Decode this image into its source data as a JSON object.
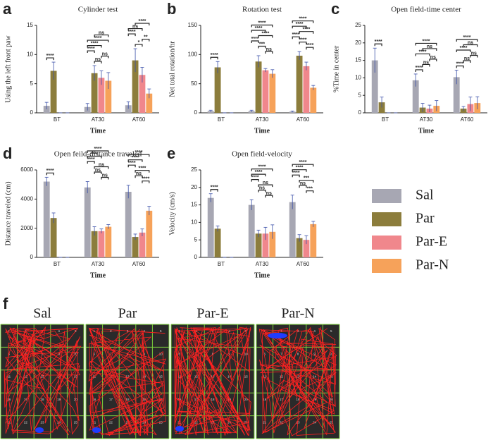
{
  "chart_data": [
    {
      "type": "bar",
      "label": "a",
      "title": "Cylinder test",
      "y_label": "Using the left front paw",
      "x_label": "Time",
      "categories": [
        "BT",
        "AT30",
        "AT60"
      ],
      "ylim": [
        0,
        15
      ],
      "yticks": [
        0,
        5,
        10,
        15
      ],
      "series": [
        {
          "name": "Sal",
          "color": "#a7a7b3",
          "values": [
            1.2,
            1.0,
            1.3
          ],
          "errors": [
            0.6,
            0.6,
            0.6
          ]
        },
        {
          "name": "Par",
          "color": "#8c7d3c",
          "values": [
            7.2,
            6.8,
            9.0
          ],
          "errors": [
            1.5,
            1.3,
            2.0
          ]
        },
        {
          "name": "Par-E",
          "color": "#f0878c",
          "values": [
            0,
            6.0,
            6.5
          ],
          "errors": [
            0,
            1.2,
            1.3
          ]
        },
        {
          "name": "Par-N",
          "color": "#f6a25a",
          "values": [
            0,
            5.5,
            3.3
          ],
          "errors": [
            0,
            1.4,
            0.8
          ]
        }
      ],
      "annotations": [
        {
          "category": "BT",
          "between": [
            "Sal",
            "Par"
          ],
          "label": "****"
        },
        {
          "category": "AT30",
          "between": [
            "Par",
            "Par-E"
          ],
          "label": "ns"
        },
        {
          "category": "AT30",
          "between": [
            "Par-E",
            "Par-N"
          ],
          "label": "ns"
        },
        {
          "category": "AT30",
          "between": [
            "Sal",
            "Par"
          ],
          "label": "****"
        },
        {
          "category": "AT30",
          "between": [
            "Sal",
            "Par-E"
          ],
          "label": "****"
        },
        {
          "category": "AT30",
          "between": [
            "Sal",
            "Par-N"
          ],
          "label": "****"
        },
        {
          "category": "AT30",
          "between": [
            "Par",
            "Par-N"
          ],
          "label": "ns"
        },
        {
          "category": "AT60",
          "between": [
            "Par",
            "Par-E"
          ],
          "label": "*"
        },
        {
          "category": "AT60",
          "between": [
            "Par-E",
            "Par-N"
          ],
          "label": "**"
        },
        {
          "category": "AT60",
          "between": [
            "Sal",
            "Par"
          ],
          "label": "****"
        },
        {
          "category": "AT60",
          "between": [
            "Sal",
            "Par-E"
          ],
          "label": "ns"
        },
        {
          "category": "AT60",
          "between": [
            "Par",
            "Par-N"
          ],
          "label": "****"
        }
      ]
    },
    {
      "type": "bar",
      "label": "b",
      "title": "Rotation test",
      "y_label": "Net total rotation/hr",
      "x_label": "Time",
      "categories": [
        "BT",
        "AT30",
        "AT60"
      ],
      "ylim": [
        0,
        150
      ],
      "yticks": [
        0,
        50,
        100,
        150
      ],
      "series": [
        {
          "name": "Sal",
          "color": "#a7a7b3",
          "values": [
            3,
            3,
            2
          ],
          "errors": [
            1.5,
            1.5,
            1
          ]
        },
        {
          "name": "Par",
          "color": "#8c7d3c",
          "values": [
            78,
            88,
            98
          ],
          "errors": [
            10,
            10,
            7
          ]
        },
        {
          "name": "Par-E",
          "color": "#f0878c",
          "values": [
            0,
            73,
            80
          ],
          "errors": [
            0,
            3,
            7
          ]
        },
        {
          "name": "Par-N",
          "color": "#f6a25a",
          "values": [
            0,
            67,
            43
          ],
          "errors": [
            0,
            7,
            4
          ]
        }
      ],
      "annotations": [
        {
          "category": "BT",
          "between": [
            "Sal",
            "Par"
          ],
          "label": "****"
        },
        {
          "category": "AT30",
          "between": [
            "Par-E",
            "Par-N"
          ],
          "label": "ns"
        },
        {
          "category": "AT30",
          "between": [
            "Par",
            "Par-E"
          ],
          "label": "***"
        },
        {
          "category": "AT30",
          "between": [
            "Sal",
            "Par"
          ],
          "label": "****"
        },
        {
          "category": "AT30",
          "between": [
            "Par",
            "Par-N"
          ],
          "label": "****"
        },
        {
          "category": "AT30",
          "between": [
            "Sal",
            "Par-E"
          ],
          "label": "****"
        },
        {
          "category": "AT30",
          "between": [
            "Sal",
            "Par-N"
          ],
          "label": "****"
        },
        {
          "category": "AT60",
          "between": [
            "Par-E",
            "Par-N"
          ],
          "label": "****"
        },
        {
          "category": "AT60",
          "between": [
            "Par",
            "Par-E"
          ],
          "label": "****"
        },
        {
          "category": "AT60",
          "between": [
            "Sal",
            "Par"
          ],
          "label": "****"
        },
        {
          "category": "AT60",
          "between": [
            "Par",
            "Par-N"
          ],
          "label": "****"
        },
        {
          "category": "AT60",
          "between": [
            "Sal",
            "Par-E"
          ],
          "label": "****"
        },
        {
          "category": "AT60",
          "between": [
            "Sal",
            "Par-N"
          ],
          "label": "****"
        }
      ]
    },
    {
      "type": "bar",
      "label": "c",
      "title": "Open field-time center",
      "y_label": "%Time in center",
      "x_label": "Time",
      "categories": [
        "BT",
        "AT30",
        "AT60"
      ],
      "ylim": [
        0,
        25
      ],
      "yticks": [
        0,
        5,
        10,
        15,
        20,
        25
      ],
      "series": [
        {
          "name": "Sal",
          "color": "#a7a7b3",
          "values": [
            15,
            9.3,
            10.2
          ],
          "errors": [
            3.5,
            1.8,
            2.0
          ]
        },
        {
          "name": "Par",
          "color": "#8c7d3c",
          "values": [
            3,
            1.5,
            1.2
          ],
          "errors": [
            1.5,
            1.2,
            0.6
          ]
        },
        {
          "name": "Par-E",
          "color": "#f0878c",
          "values": [
            0,
            1.2,
            2.5
          ],
          "errors": [
            0,
            1.0,
            2.0
          ]
        },
        {
          "name": "Par-N",
          "color": "#f6a25a",
          "values": [
            0,
            2,
            2.8
          ],
          "errors": [
            0,
            1.5,
            1.8
          ]
        }
      ],
      "annotations": [
        {
          "category": "BT",
          "between": [
            "Sal",
            "Par"
          ],
          "label": "****"
        },
        {
          "category": "AT30",
          "between": [
            "Sal",
            "Par"
          ],
          "label": "****"
        },
        {
          "category": "AT30",
          "between": [
            "Par",
            "Par-E"
          ],
          "label": "ns"
        },
        {
          "category": "AT30",
          "between": [
            "Par-E",
            "Par-N"
          ],
          "label": "ns"
        },
        {
          "category": "AT30",
          "between": [
            "Sal",
            "Par-E"
          ],
          "label": "****"
        },
        {
          "category": "AT30",
          "between": [
            "Par",
            "Par-N"
          ],
          "label": "ns"
        },
        {
          "category": "AT30",
          "between": [
            "Sal",
            "Par-N"
          ],
          "label": "****"
        },
        {
          "category": "AT60",
          "between": [
            "Sal",
            "Par"
          ],
          "label": "****"
        },
        {
          "category": "AT60",
          "between": [
            "Par",
            "Par-E"
          ],
          "label": "ns"
        },
        {
          "category": "AT60",
          "between": [
            "Par-E",
            "Par-N"
          ],
          "label": "ns"
        },
        {
          "category": "AT60",
          "between": [
            "Sal",
            "Par-E"
          ],
          "label": "****"
        },
        {
          "category": "AT60",
          "between": [
            "Par",
            "Par-N"
          ],
          "label": "ns"
        },
        {
          "category": "AT60",
          "between": [
            "Sal",
            "Par-N"
          ],
          "label": "****"
        }
      ]
    },
    {
      "type": "bar",
      "label": "d",
      "title": "Open feild-distance traveled",
      "y_label": "Distance traveled (cm)",
      "x_label": "Time",
      "categories": [
        "BT",
        "AT30",
        "AT60"
      ],
      "ylim": [
        0,
        6000
      ],
      "yticks": [
        0,
        2000,
        4000,
        6000
      ],
      "series": [
        {
          "name": "Sal",
          "color": "#a7a7b3",
          "values": [
            5200,
            4800,
            4500
          ],
          "errors": [
            300,
            400,
            450
          ]
        },
        {
          "name": "Par",
          "color": "#8c7d3c",
          "values": [
            2700,
            1800,
            1400
          ],
          "errors": [
            350,
            300,
            200
          ]
        },
        {
          "name": "Par-E",
          "color": "#f0878c",
          "values": [
            0,
            1800,
            1700
          ],
          "errors": [
            0,
            150,
            250
          ]
        },
        {
          "name": "Par-N",
          "color": "#f6a25a",
          "values": [
            0,
            2100,
            3200
          ],
          "errors": [
            0,
            150,
            300
          ]
        }
      ],
      "annotations": [
        {
          "category": "BT",
          "between": [
            "Sal",
            "Par"
          ],
          "label": "****"
        },
        {
          "category": "AT30",
          "between": [
            "Par-E",
            "Par-N"
          ],
          "label": "ns"
        },
        {
          "category": "AT30",
          "between": [
            "Par",
            "Par-E"
          ],
          "label": "ns"
        },
        {
          "category": "AT30",
          "between": [
            "Par",
            "Par-N"
          ],
          "label": "ns"
        },
        {
          "category": "AT30",
          "between": [
            "Sal",
            "Par"
          ],
          "label": "****"
        },
        {
          "category": "AT30",
          "between": [
            "Sal",
            "Par-E"
          ],
          "label": "****"
        },
        {
          "category": "AT30",
          "between": [
            "Sal",
            "Par-N"
          ],
          "label": "****"
        },
        {
          "category": "AT60",
          "between": [
            "Par-E",
            "Par-N"
          ],
          "label": "****"
        },
        {
          "category": "AT60",
          "between": [
            "Par",
            "Par-E"
          ],
          "label": "ns"
        },
        {
          "category": "AT60",
          "between": [
            "Par",
            "Par-N"
          ],
          "label": "****"
        },
        {
          "category": "AT60",
          "between": [
            "Sal",
            "Par"
          ],
          "label": "****"
        },
        {
          "category": "AT60",
          "between": [
            "Sal",
            "Par-E"
          ],
          "label": "****"
        },
        {
          "category": "AT60",
          "between": [
            "Sal",
            "Par-N"
          ],
          "label": "****"
        }
      ]
    },
    {
      "type": "bar",
      "label": "e",
      "title": "Open field-velocity",
      "y_label": "Velocity (cm/s)",
      "x_label": "Time",
      "categories": [
        "BT",
        "AT30",
        "AT60"
      ],
      "ylim": [
        0,
        25
      ],
      "yticks": [
        0,
        5,
        10,
        15,
        20,
        25
      ],
      "series": [
        {
          "name": "Sal",
          "color": "#a7a7b3",
          "values": [
            17,
            15,
            15.8
          ],
          "errors": [
            1.2,
            1.5,
            2.0
          ]
        },
        {
          "name": "Par",
          "color": "#8c7d3c",
          "values": [
            8.2,
            6.8,
            5.5
          ],
          "errors": [
            0.8,
            1.0,
            1.0
          ]
        },
        {
          "name": "Par-E",
          "color": "#f0878c",
          "values": [
            0,
            6.8,
            5
          ],
          "errors": [
            0,
            1.8,
            1.2
          ]
        },
        {
          "name": "Par-N",
          "color": "#f6a25a",
          "values": [
            0,
            7.3,
            9.5
          ],
          "errors": [
            0,
            2.0,
            0.8
          ]
        }
      ],
      "annotations": [
        {
          "category": "BT",
          "between": [
            "Sal",
            "Par"
          ],
          "label": "****"
        },
        {
          "category": "AT30",
          "between": [
            "Par-E",
            "Par-N"
          ],
          "label": "ns"
        },
        {
          "category": "AT30",
          "between": [
            "Par",
            "Par-E"
          ],
          "label": "ns"
        },
        {
          "category": "AT30",
          "between": [
            "Par",
            "Par-N"
          ],
          "label": "ns"
        },
        {
          "category": "AT30",
          "between": [
            "Sal",
            "Par"
          ],
          "label": "****"
        },
        {
          "category": "AT30",
          "between": [
            "Sal",
            "Par-E"
          ],
          "label": "****"
        },
        {
          "category": "AT30",
          "between": [
            "Sal",
            "Par-N"
          ],
          "label": "****"
        },
        {
          "category": "AT60",
          "between": [
            "Par-E",
            "Par-N"
          ],
          "label": "***"
        },
        {
          "category": "AT60",
          "between": [
            "Par",
            "Par-E"
          ],
          "label": "ns"
        },
        {
          "category": "AT60",
          "between": [
            "Par",
            "Par-N"
          ],
          "label": "***"
        },
        {
          "category": "AT60",
          "between": [
            "Sal",
            "Par"
          ],
          "label": "****"
        },
        {
          "category": "AT60",
          "between": [
            "Sal",
            "Par-E"
          ],
          "label": "****"
        },
        {
          "category": "AT60",
          "between": [
            "Sal",
            "Par-N"
          ],
          "label": "****"
        }
      ]
    }
  ],
  "open_field": {
    "label": "f",
    "groups": [
      "Sal",
      "Par",
      "Par-E",
      "Par-N"
    ],
    "grid_numbers": [
      1,
      2,
      3,
      4,
      5,
      6,
      7,
      8,
      9,
      10,
      11,
      12,
      13,
      14,
      15,
      16,
      17,
      18,
      19,
      20,
      21,
      22,
      23,
      24,
      25
    ]
  }
}
